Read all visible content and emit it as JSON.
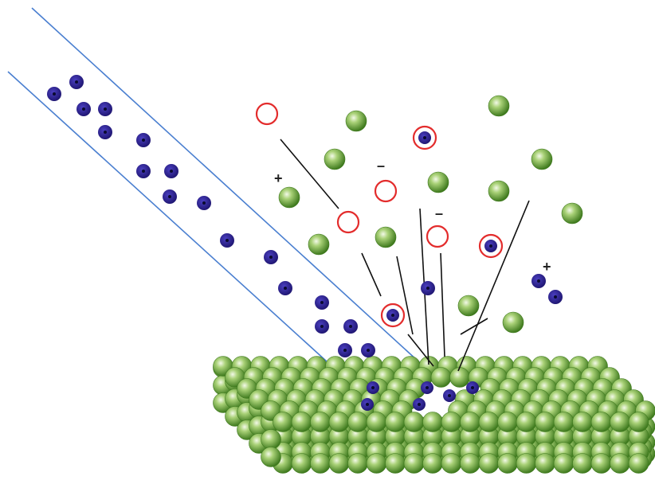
{
  "diagram": {
    "labels": {
      "positive_sign": "+",
      "negative_sign": "–"
    },
    "colors": {
      "background": "#ffffff",
      "beam_edge": "#4a7fd0",
      "projectile_fill": "#2d2190",
      "projectile_core": "#0a0a30",
      "target_atom_light": "#e6f2cc",
      "target_atom_mid": "#8fc05a",
      "target_atom_dark": "#3f7a1e",
      "ion_ring": "#e32c2c",
      "trajectory": "#111111"
    },
    "icons": {
      "projectile": "dark-blue-dot-icon",
      "target_atom": "green-sphere-icon",
      "ejected_ion": "red-ring-icon",
      "implanted_projectile": "ringed-blue-dot-icon"
    }
  }
}
